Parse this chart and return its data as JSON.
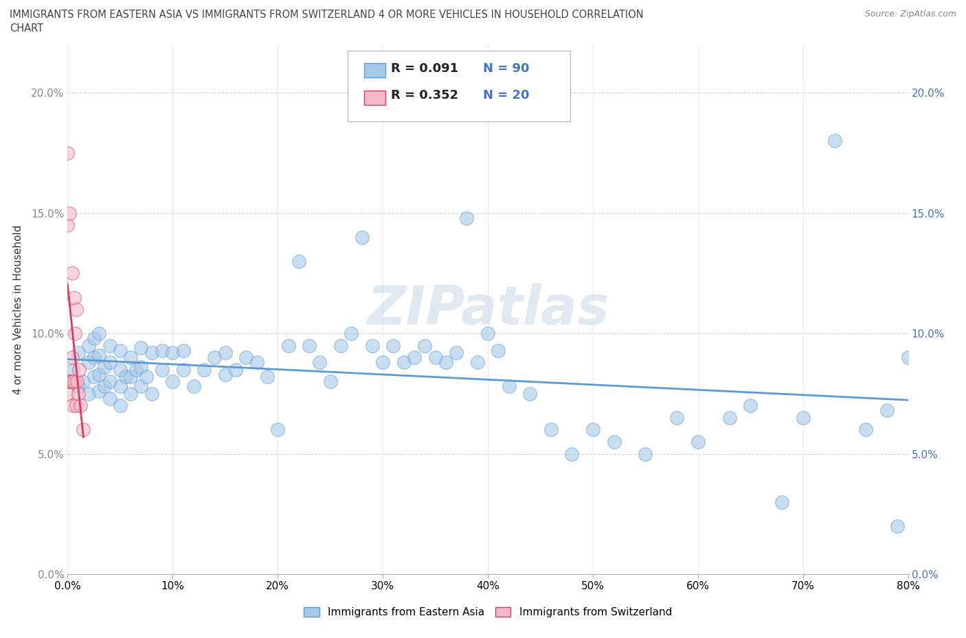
{
  "title_line1": "IMMIGRANTS FROM EASTERN ASIA VS IMMIGRANTS FROM SWITZERLAND 4 OR MORE VEHICLES IN HOUSEHOLD CORRELATION",
  "title_line2": "CHART",
  "source": "Source: ZipAtlas.com",
  "ylabel": "4 or more Vehicles in Household",
  "legend1_label": "Immigrants from Eastern Asia",
  "legend2_label": "Immigrants from Switzerland",
  "R1": 0.091,
  "N1": 90,
  "R2": 0.352,
  "N2": 20,
  "color_blue": "#a8c8e8",
  "color_blue_line": "#5b9bd5",
  "color_pink": "#f4b8c8",
  "color_pink_line": "#d04060",
  "color_text_blue": "#4472c4",
  "xlim": [
    0.0,
    0.8
  ],
  "ylim": [
    0.0,
    0.22
  ],
  "xticks": [
    0.0,
    0.1,
    0.2,
    0.3,
    0.4,
    0.5,
    0.6,
    0.7,
    0.8
  ],
  "yticks": [
    0.0,
    0.05,
    0.1,
    0.15,
    0.2
  ],
  "watermark": "ZIPatlas",
  "blue_scatter_x": [
    0.005,
    0.01,
    0.01,
    0.015,
    0.02,
    0.02,
    0.02,
    0.025,
    0.025,
    0.025,
    0.03,
    0.03,
    0.03,
    0.03,
    0.035,
    0.035,
    0.04,
    0.04,
    0.04,
    0.04,
    0.05,
    0.05,
    0.05,
    0.05,
    0.055,
    0.06,
    0.06,
    0.06,
    0.065,
    0.07,
    0.07,
    0.07,
    0.075,
    0.08,
    0.08,
    0.09,
    0.09,
    0.1,
    0.1,
    0.11,
    0.11,
    0.12,
    0.13,
    0.14,
    0.15,
    0.15,
    0.16,
    0.17,
    0.18,
    0.19,
    0.2,
    0.21,
    0.22,
    0.23,
    0.24,
    0.25,
    0.26,
    0.27,
    0.28,
    0.29,
    0.3,
    0.31,
    0.32,
    0.33,
    0.34,
    0.35,
    0.36,
    0.37,
    0.38,
    0.39,
    0.4,
    0.41,
    0.42,
    0.44,
    0.46,
    0.48,
    0.5,
    0.52,
    0.55,
    0.58,
    0.6,
    0.63,
    0.65,
    0.68,
    0.7,
    0.73,
    0.76,
    0.78,
    0.79,
    0.8
  ],
  "blue_scatter_y": [
    0.085,
    0.078,
    0.092,
    0.08,
    0.075,
    0.088,
    0.095,
    0.082,
    0.09,
    0.098,
    0.076,
    0.083,
    0.091,
    0.1,
    0.078,
    0.086,
    0.073,
    0.08,
    0.088,
    0.095,
    0.07,
    0.078,
    0.085,
    0.093,
    0.082,
    0.075,
    0.082,
    0.09,
    0.085,
    0.078,
    0.086,
    0.094,
    0.082,
    0.075,
    0.092,
    0.085,
    0.093,
    0.08,
    0.092,
    0.085,
    0.093,
    0.078,
    0.085,
    0.09,
    0.083,
    0.092,
    0.085,
    0.09,
    0.088,
    0.082,
    0.06,
    0.095,
    0.13,
    0.095,
    0.088,
    0.08,
    0.095,
    0.1,
    0.14,
    0.095,
    0.088,
    0.095,
    0.088,
    0.09,
    0.095,
    0.09,
    0.088,
    0.092,
    0.148,
    0.088,
    0.1,
    0.093,
    0.078,
    0.075,
    0.06,
    0.05,
    0.06,
    0.055,
    0.05,
    0.065,
    0.055,
    0.065,
    0.07,
    0.03,
    0.065,
    0.18,
    0.06,
    0.068,
    0.02,
    0.09
  ],
  "pink_scatter_x": [
    0.0,
    0.0,
    0.0,
    0.002,
    0.002,
    0.003,
    0.004,
    0.004,
    0.004,
    0.005,
    0.006,
    0.006,
    0.007,
    0.008,
    0.008,
    0.009,
    0.01,
    0.011,
    0.012,
    0.015
  ],
  "pink_scatter_y": [
    0.075,
    0.145,
    0.175,
    0.08,
    0.15,
    0.08,
    0.08,
    0.09,
    0.125,
    0.07,
    0.08,
    0.115,
    0.1,
    0.07,
    0.11,
    0.08,
    0.075,
    0.085,
    0.07,
    0.06
  ]
}
